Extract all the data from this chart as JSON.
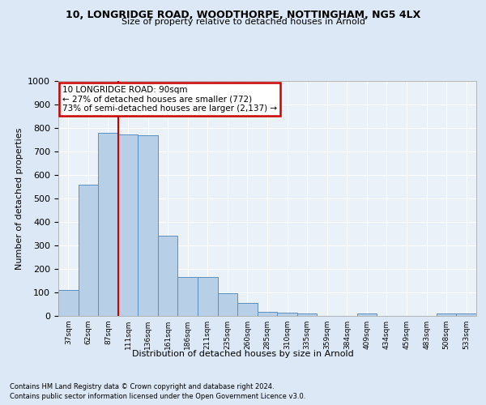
{
  "title_line1": "10, LONGRIDGE ROAD, WOODTHORPE, NOTTINGHAM, NG5 4LX",
  "title_line2": "Size of property relative to detached houses in Arnold",
  "xlabel": "Distribution of detached houses by size in Arnold",
  "ylabel": "Number of detached properties",
  "categories": [
    "37sqm",
    "62sqm",
    "87sqm",
    "111sqm",
    "136sqm",
    "161sqm",
    "186sqm",
    "211sqm",
    "235sqm",
    "260sqm",
    "285sqm",
    "310sqm",
    "335sqm",
    "359sqm",
    "384sqm",
    "409sqm",
    "434sqm",
    "459sqm",
    "483sqm",
    "508sqm",
    "533sqm"
  ],
  "values": [
    112,
    558,
    778,
    771,
    770,
    343,
    165,
    165,
    97,
    55,
    18,
    15,
    12,
    0,
    0,
    12,
    0,
    0,
    0,
    10,
    10
  ],
  "bar_color": "#b8cfe8",
  "bar_edge_color": "#5a8fc0",
  "vline_index": 2,
  "vline_color": "#cc0000",
  "annotation_text": "10 LONGRIDGE ROAD: 90sqm\n← 27% of detached houses are smaller (772)\n73% of semi-detached houses are larger (2,137) →",
  "annotation_box_color": "white",
  "annotation_box_edge": "#cc0000",
  "ylim": [
    0,
    1000
  ],
  "yticks": [
    0,
    100,
    200,
    300,
    400,
    500,
    600,
    700,
    800,
    900,
    1000
  ],
  "footer_line1": "Contains HM Land Registry data © Crown copyright and database right 2024.",
  "footer_line2": "Contains public sector information licensed under the Open Government Licence v3.0.",
  "bg_color": "#dce8f5",
  "plot_bg_color": "#eaf1f8",
  "grid_color": "#ffffff"
}
